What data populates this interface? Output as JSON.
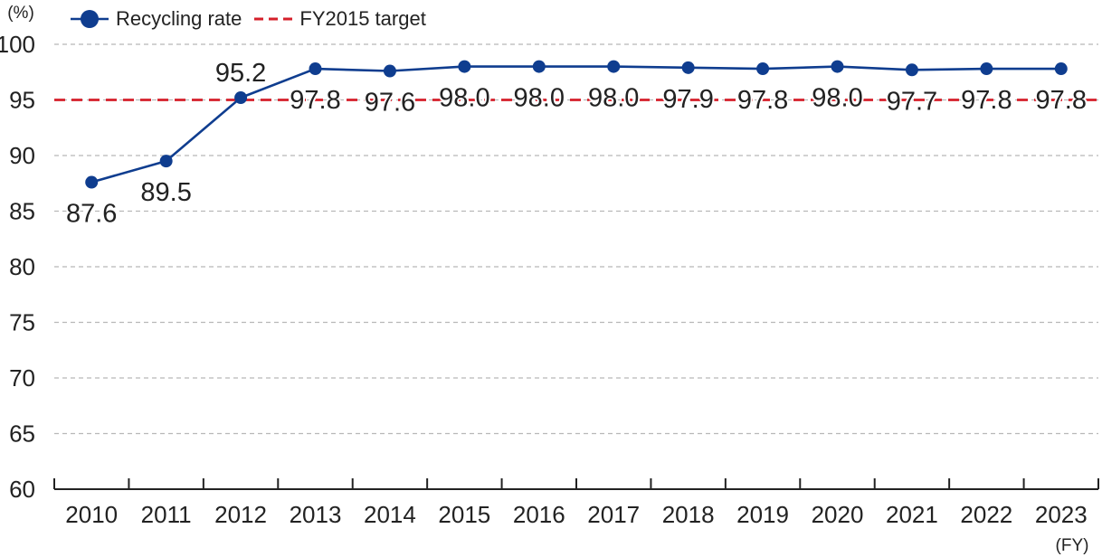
{
  "chart_data": {
    "type": "line",
    "title": "",
    "ylabel": "(%)",
    "xlabel": "(FY)",
    "categories": [
      "2010",
      "2011",
      "2012",
      "2013",
      "2014",
      "2015",
      "2016",
      "2017",
      "2018",
      "2019",
      "2020",
      "2021",
      "2022",
      "2023"
    ],
    "series": [
      {
        "name": "Recycling rate",
        "values": [
          87.6,
          89.5,
          95.2,
          97.8,
          97.6,
          98.0,
          98.0,
          98.0,
          97.9,
          97.8,
          98.0,
          97.7,
          97.8,
          97.8
        ],
        "labels": [
          "87.6",
          "89.5",
          "95.2",
          "97.8",
          "97.6",
          "98.0",
          "98.0",
          "98.0",
          "97.9",
          "97.8",
          "98.0",
          "97.7",
          "97.8",
          "97.8"
        ],
        "color": "#0f3d8f",
        "style": "line-with-markers"
      }
    ],
    "reference_lines": [
      {
        "name": "FY2015 target",
        "value": 95,
        "color": "#d51f2a",
        "style": "dashed"
      }
    ],
    "ylim": [
      60,
      100
    ],
    "yticks": [
      "60",
      "65",
      "70",
      "75",
      "80",
      "85",
      "90",
      "95",
      "100"
    ],
    "grid": true,
    "legend_position": "top-left"
  },
  "legend": {
    "series_label": "Recycling rate",
    "target_label": "FY2015 target"
  },
  "colors": {
    "series": "#0f3d8f",
    "target": "#d51f2a",
    "grid": "#b8b8b8",
    "axis": "#222222"
  }
}
